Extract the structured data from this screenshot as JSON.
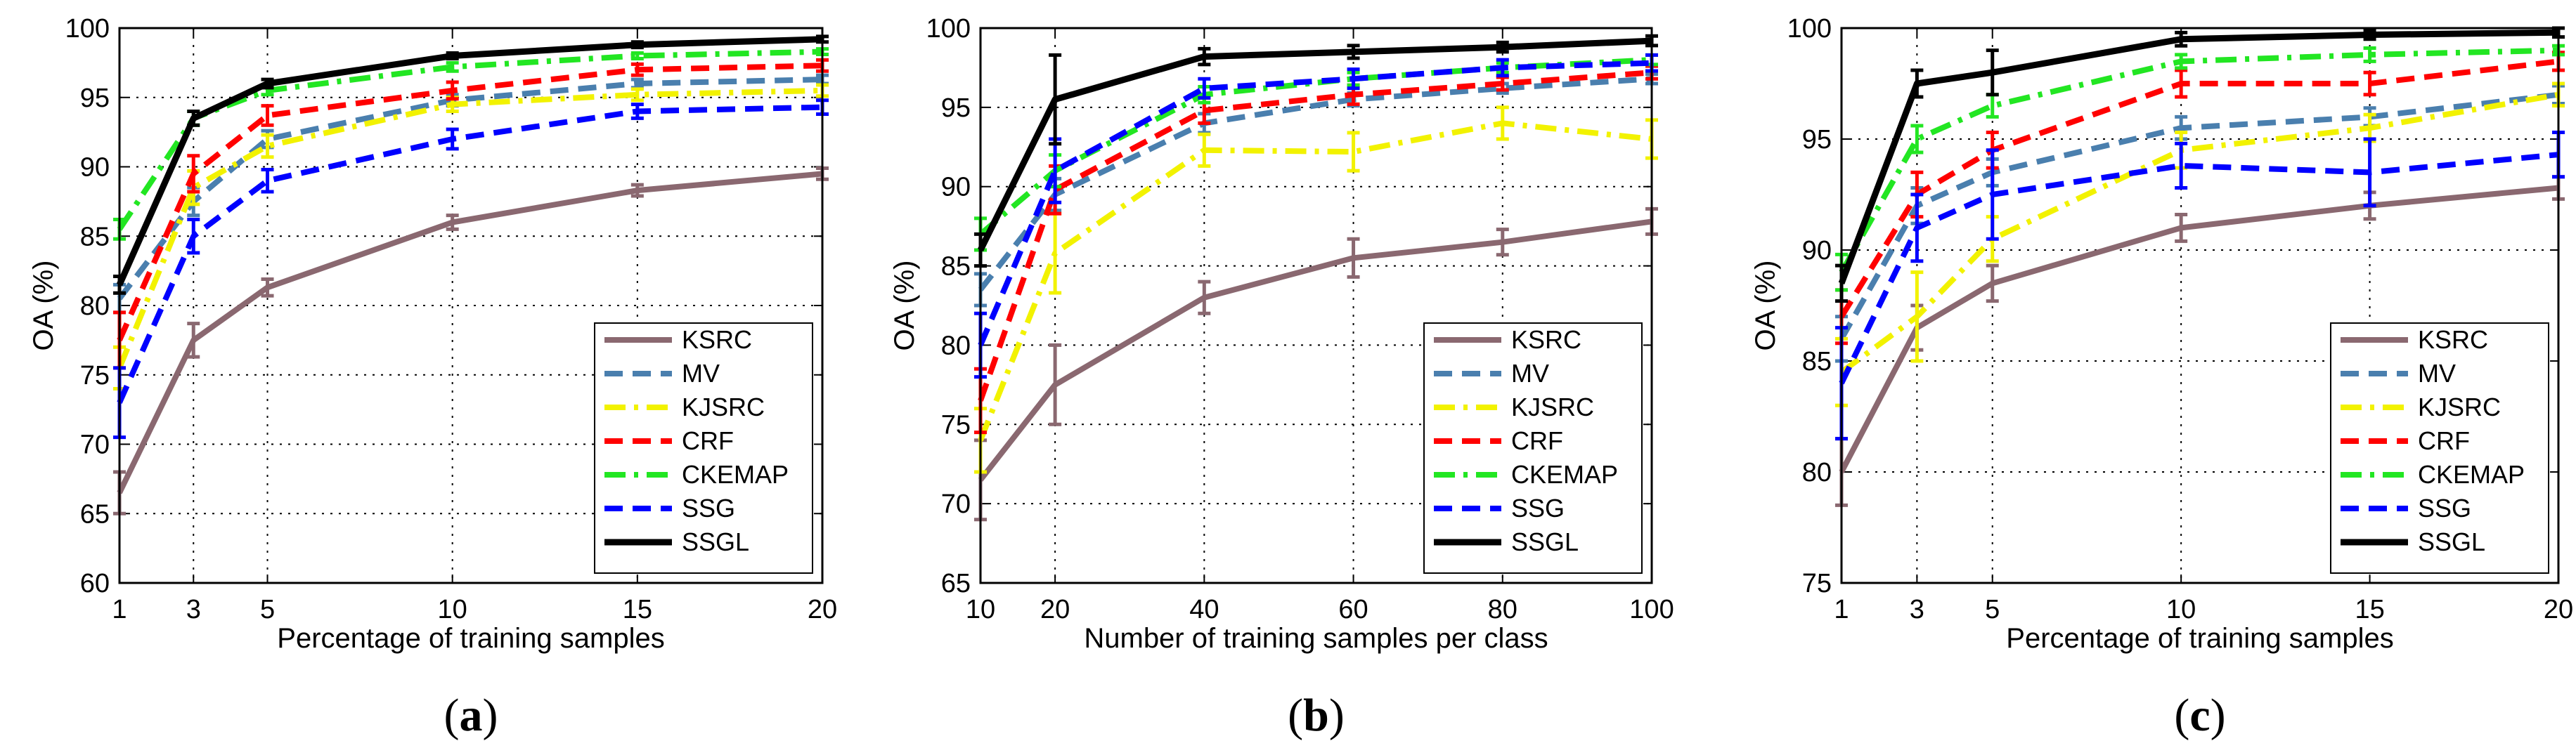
{
  "series_styles": [
    {
      "name": "KSRC",
      "color": "#8a6870",
      "dash": "solid",
      "width": 8
    },
    {
      "name": "MV",
      "color": "#4a7fae",
      "dash": "dash",
      "width": 8
    },
    {
      "name": "KJSRC",
      "color": "#f2f200",
      "dash": "dashdot",
      "width": 8
    },
    {
      "name": "CRF",
      "color": "#ff0000",
      "dash": "dash",
      "width": 8
    },
    {
      "name": "CKEMAP",
      "color": "#22e622",
      "dash": "dashdot",
      "width": 8
    },
    {
      "name": "SSG",
      "color": "#0000ff",
      "dash": "dash",
      "width": 8
    },
    {
      "name": "SSGL",
      "color": "#000000",
      "dash": "solid",
      "width": 9
    }
  ],
  "chart_data": [
    {
      "type": "line",
      "caption": "(a)",
      "caption_letter": "a",
      "xlabel": "Percentage of training samples",
      "ylabel": "OA (%)",
      "x": [
        1,
        3,
        5,
        10,
        15,
        20
      ],
      "x_ticks": [
        1,
        3,
        5,
        10,
        15,
        20
      ],
      "y_ticks": [
        60,
        65,
        70,
        75,
        80,
        85,
        90,
        95,
        100
      ],
      "xlim": [
        1,
        20
      ],
      "ylim": [
        60,
        100
      ],
      "grid": true,
      "legend": "bottom-right",
      "series": [
        {
          "name": "KSRC",
          "values": [
            66.5,
            77.5,
            81.3,
            86.0,
            88.3,
            89.5
          ],
          "errors": [
            1.5,
            1.2,
            0.6,
            0.5,
            0.4,
            0.4
          ]
        },
        {
          "name": "MV",
          "values": [
            80.5,
            87.5,
            92.0,
            94.8,
            96.0,
            96.3
          ],
          "errors": [
            1.0,
            1.0,
            0.6,
            0.4,
            0.3,
            0.3
          ]
        },
        {
          "name": "KJSRC",
          "values": [
            75.5,
            88.5,
            91.5,
            94.5,
            95.2,
            95.5
          ],
          "errors": [
            1.5,
            1.2,
            0.8,
            0.5,
            0.4,
            0.4
          ]
        },
        {
          "name": "CRF",
          "values": [
            77.5,
            89.5,
            93.7,
            95.5,
            97.0,
            97.3
          ],
          "errors": [
            2.0,
            1.3,
            0.7,
            0.6,
            0.4,
            0.4
          ]
        },
        {
          "name": "CKEMAP",
          "values": [
            85.5,
            93.5,
            95.5,
            97.2,
            98.0,
            98.3
          ],
          "errors": [
            0.7,
            0.5,
            0.3,
            0.3,
            0.2,
            0.2
          ]
        },
        {
          "name": "SSG",
          "values": [
            73.0,
            85.0,
            89.0,
            92.0,
            94.0,
            94.3
          ],
          "errors": [
            2.5,
            1.2,
            0.8,
            0.7,
            0.5,
            0.5
          ]
        },
        {
          "name": "SSGL",
          "values": [
            81.5,
            93.5,
            96.0,
            98.0,
            98.8,
            99.2
          ],
          "errors": [
            0.6,
            0.5,
            0.3,
            0.2,
            0.2,
            0.2
          ]
        }
      ]
    },
    {
      "type": "line",
      "caption": "(b)",
      "caption_letter": "b",
      "xlabel": "Number of training samples per class",
      "ylabel": "OA (%)",
      "x": [
        10,
        20,
        40,
        60,
        80,
        100
      ],
      "x_ticks": [
        10,
        20,
        40,
        60,
        80,
        100
      ],
      "y_ticks": [
        65,
        70,
        75,
        80,
        85,
        90,
        95,
        100
      ],
      "xlim": [
        10,
        100
      ],
      "ylim": [
        65,
        100
      ],
      "grid": true,
      "legend": "bottom-right",
      "series": [
        {
          "name": "KSRC",
          "values": [
            71.5,
            77.5,
            83.0,
            85.5,
            86.5,
            87.8
          ],
          "errors": [
            2.5,
            2.5,
            1.0,
            1.2,
            0.8,
            0.8
          ]
        },
        {
          "name": "MV",
          "values": [
            83.5,
            89.5,
            94.0,
            95.5,
            96.2,
            96.8
          ],
          "errors": [
            1.0,
            1.0,
            0.6,
            0.4,
            0.3,
            0.3
          ]
        },
        {
          "name": "KJSRC",
          "values": [
            74.0,
            85.8,
            92.3,
            92.2,
            94.0,
            93.0
          ],
          "errors": [
            2.0,
            2.5,
            1.0,
            1.2,
            1.0,
            1.2
          ]
        },
        {
          "name": "CRF",
          "values": [
            76.5,
            89.8,
            94.8,
            95.8,
            96.5,
            97.2
          ],
          "errors": [
            2.0,
            1.5,
            0.8,
            0.6,
            0.4,
            0.4
          ]
        },
        {
          "name": "CKEMAP",
          "values": [
            87.0,
            91.0,
            95.8,
            96.8,
            97.5,
            98.0
          ],
          "errors": [
            1.0,
            1.0,
            0.5,
            0.4,
            0.3,
            0.3
          ]
        },
        {
          "name": "SSG",
          "values": [
            80.0,
            91.0,
            96.2,
            96.8,
            97.5,
            97.8
          ],
          "errors": [
            2.0,
            2.0,
            0.6,
            0.6,
            0.5,
            0.5
          ]
        },
        {
          "name": "SSGL",
          "values": [
            86.0,
            95.5,
            98.2,
            98.5,
            98.8,
            99.2
          ],
          "errors": [
            1.0,
            2.8,
            0.5,
            0.4,
            0.3,
            0.3
          ]
        }
      ]
    },
    {
      "type": "line",
      "caption": "(c)",
      "caption_letter": "c",
      "xlabel": "Percentage of training samples",
      "ylabel": "OA (%)",
      "x": [
        1,
        3,
        5,
        10,
        15,
        20
      ],
      "x_ticks": [
        1,
        3,
        5,
        10,
        15,
        20
      ],
      "y_ticks": [
        75,
        80,
        85,
        90,
        95,
        100
      ],
      "xlim": [
        1,
        20
      ],
      "ylim": [
        75,
        100
      ],
      "grid": true,
      "legend": "bottom-right",
      "series": [
        {
          "name": "KSRC",
          "values": [
            80.0,
            86.5,
            88.5,
            91.0,
            92.0,
            92.8
          ],
          "errors": [
            1.5,
            1.0,
            0.8,
            0.6,
            0.6,
            0.5
          ]
        },
        {
          "name": "MV",
          "values": [
            86.0,
            92.0,
            93.5,
            95.5,
            96.0,
            97.0
          ],
          "errors": [
            1.0,
            0.8,
            0.6,
            0.5,
            0.4,
            0.4
          ]
        },
        {
          "name": "KJSRC",
          "values": [
            84.5,
            87.0,
            90.5,
            94.5,
            95.5,
            97.0
          ],
          "errors": [
            1.5,
            2.0,
            1.0,
            0.8,
            0.6,
            0.5
          ]
        },
        {
          "name": "CRF",
          "values": [
            87.0,
            92.5,
            94.5,
            97.5,
            97.5,
            98.5
          ],
          "errors": [
            1.2,
            1.0,
            0.8,
            0.6,
            0.5,
            0.4
          ]
        },
        {
          "name": "CKEMAP",
          "values": [
            89.0,
            95.0,
            96.5,
            98.5,
            98.8,
            99.0
          ],
          "errors": [
            0.8,
            0.6,
            0.5,
            0.3,
            0.3,
            0.2
          ]
        },
        {
          "name": "SSG",
          "values": [
            84.0,
            91.0,
            92.5,
            93.8,
            93.5,
            94.3
          ],
          "errors": [
            2.5,
            1.5,
            2.0,
            1.0,
            1.5,
            1.0
          ]
        },
        {
          "name": "SSGL",
          "values": [
            88.5,
            97.5,
            98.0,
            99.5,
            99.7,
            99.8
          ],
          "errors": [
            0.8,
            0.6,
            1.0,
            0.3,
            0.2,
            0.2
          ]
        }
      ]
    }
  ]
}
